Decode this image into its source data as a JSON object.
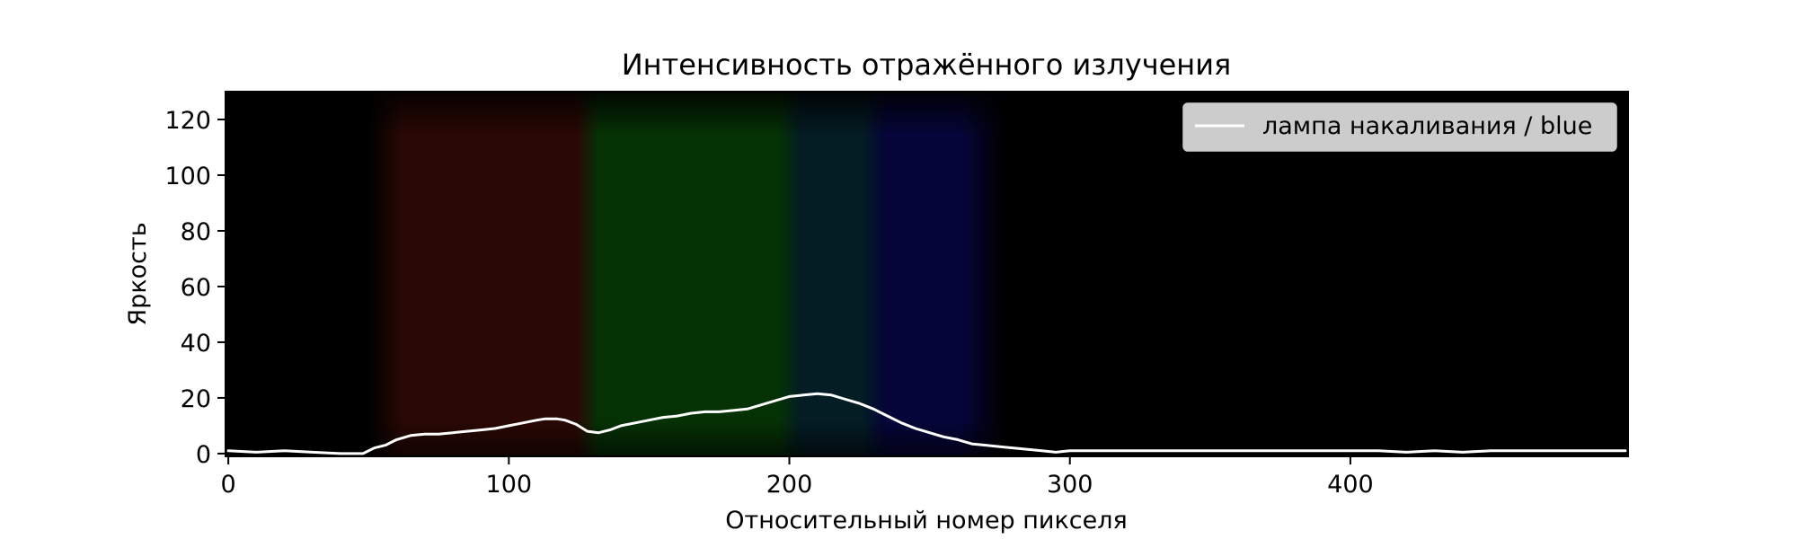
{
  "chart_data": {
    "type": "line",
    "title": "Интенсивность отражённого излучения",
    "xlabel": "Относительный номер пикселя",
    "ylabel": "Яркость",
    "xlim": [
      -1,
      499
    ],
    "ylim": [
      -1,
      130
    ],
    "x_ticks": [
      0,
      100,
      200,
      300,
      400
    ],
    "y_ticks": [
      0,
      20,
      40,
      60,
      80,
      100,
      120
    ],
    "grid": false,
    "legend": {
      "location": "top-right",
      "entries": [
        "лампа накаливания / blue"
      ]
    },
    "background_image": "spectrum photograph (red, green, blue bands on black)",
    "background_bands": [
      {
        "color": "#2a0804",
        "x_start": 58,
        "x_end": 128
      },
      {
        "color": "#053205",
        "x_start": 128,
        "x_end": 200
      },
      {
        "color": "#041c24",
        "x_start": 200,
        "x_end": 230
      },
      {
        "color": "#05053a",
        "x_start": 230,
        "x_end": 265
      }
    ],
    "series": [
      {
        "name": "лампа накаливания / blue",
        "color": "#ffffff",
        "x": [
          0,
          10,
          20,
          30,
          40,
          48,
          52,
          56,
          60,
          65,
          70,
          75,
          80,
          85,
          90,
          95,
          100,
          105,
          110,
          113,
          117,
          120,
          124,
          128,
          132,
          136,
          140,
          145,
          150,
          155,
          160,
          165,
          170,
          175,
          180,
          185,
          190,
          195,
          200,
          205,
          210,
          215,
          220,
          225,
          230,
          235,
          240,
          245,
          250,
          255,
          260,
          265,
          270,
          275,
          280,
          285,
          290,
          295,
          300,
          310,
          320,
          330,
          340,
          350,
          360,
          370,
          380,
          390,
          400,
          410,
          420,
          430,
          440,
          450,
          460,
          470,
          480,
          490,
          498
        ],
        "values": [
          1,
          0.5,
          1,
          0.5,
          0,
          0,
          2,
          3,
          5,
          6.5,
          7,
          7,
          7.5,
          8,
          8.5,
          9,
          10,
          11,
          12,
          12.5,
          12.5,
          12,
          10.5,
          8,
          7.5,
          8.5,
          10,
          11,
          12,
          13,
          13.5,
          14.5,
          15,
          15,
          15.5,
          16,
          17.5,
          19,
          20.5,
          21,
          21.5,
          21,
          19.5,
          18,
          16,
          13.5,
          11,
          9,
          7.5,
          6,
          5,
          3.5,
          3,
          2.5,
          2,
          1.5,
          1,
          0.5,
          1,
          1,
          1,
          1,
          1,
          1,
          1,
          1,
          1,
          1,
          1,
          1,
          0.5,
          1,
          0.5,
          1,
          1,
          1,
          1,
          1,
          1
        ]
      }
    ]
  }
}
